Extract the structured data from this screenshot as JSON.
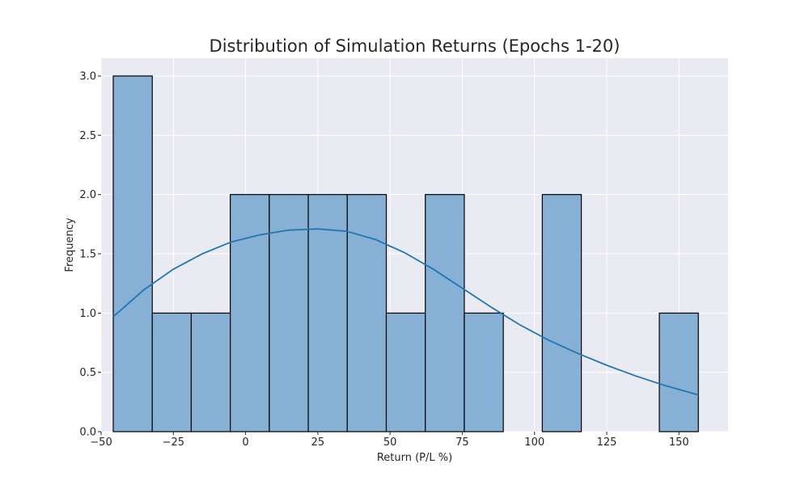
{
  "chart_data": {
    "type": "bar",
    "title": "Distribution of Simulation Returns (Epochs 1-20)",
    "xlabel": "Return (P/L %)",
    "ylabel": "Frequency",
    "xlim": [
      -50,
      167
    ],
    "ylim": [
      0,
      3.15
    ],
    "grid": true,
    "x_ticks": [
      -50,
      -25,
      0,
      25,
      50,
      75,
      100,
      125,
      150
    ],
    "x_tick_labels": [
      "−50",
      "−25",
      "0",
      "25",
      "50",
      "75",
      "100",
      "125",
      "150"
    ],
    "y_ticks": [
      0,
      0.5,
      1.0,
      1.5,
      2.0,
      2.5,
      3.0
    ],
    "y_tick_labels": [
      "0.0",
      "0.5",
      "1.0",
      "1.5",
      "2.0",
      "2.5",
      "3.0"
    ],
    "bins": [
      {
        "start": -45.8,
        "end": -32.3,
        "count": 3
      },
      {
        "start": -32.3,
        "end": -18.8,
        "count": 1
      },
      {
        "start": -18.8,
        "end": -5.3,
        "count": 1
      },
      {
        "start": -5.3,
        "end": 8.2,
        "count": 2
      },
      {
        "start": 8.2,
        "end": 21.7,
        "count": 2
      },
      {
        "start": 21.7,
        "end": 35.2,
        "count": 2
      },
      {
        "start": 35.2,
        "end": 48.7,
        "count": 2
      },
      {
        "start": 48.7,
        "end": 62.2,
        "count": 1
      },
      {
        "start": 62.2,
        "end": 75.7,
        "count": 2
      },
      {
        "start": 75.7,
        "end": 89.2,
        "count": 1
      },
      {
        "start": 89.2,
        "end": 102.7,
        "count": 0
      },
      {
        "start": 102.7,
        "end": 116.2,
        "count": 2
      },
      {
        "start": 116.2,
        "end": 129.7,
        "count": 0
      },
      {
        "start": 129.7,
        "end": 143.2,
        "count": 0
      },
      {
        "start": 143.2,
        "end": 156.7,
        "count": 1
      }
    ],
    "kde": {
      "x": [
        -45.8,
        -35,
        -25,
        -15,
        -5,
        5,
        15,
        25,
        35,
        45,
        55,
        65,
        75,
        85,
        95,
        105,
        115,
        125,
        135,
        145,
        156.7
      ],
      "y": [
        0.97,
        1.2,
        1.37,
        1.5,
        1.6,
        1.66,
        1.7,
        1.71,
        1.69,
        1.62,
        1.51,
        1.37,
        1.21,
        1.05,
        0.9,
        0.77,
        0.66,
        0.56,
        0.47,
        0.39,
        0.31
      ]
    },
    "colors": {
      "background": "#eaeaf2",
      "grid": "#ffffff",
      "bar_fill": "#86b0d4",
      "bar_edge": "#000000",
      "kde_line": "#1f77b4",
      "text": "#262626"
    }
  }
}
